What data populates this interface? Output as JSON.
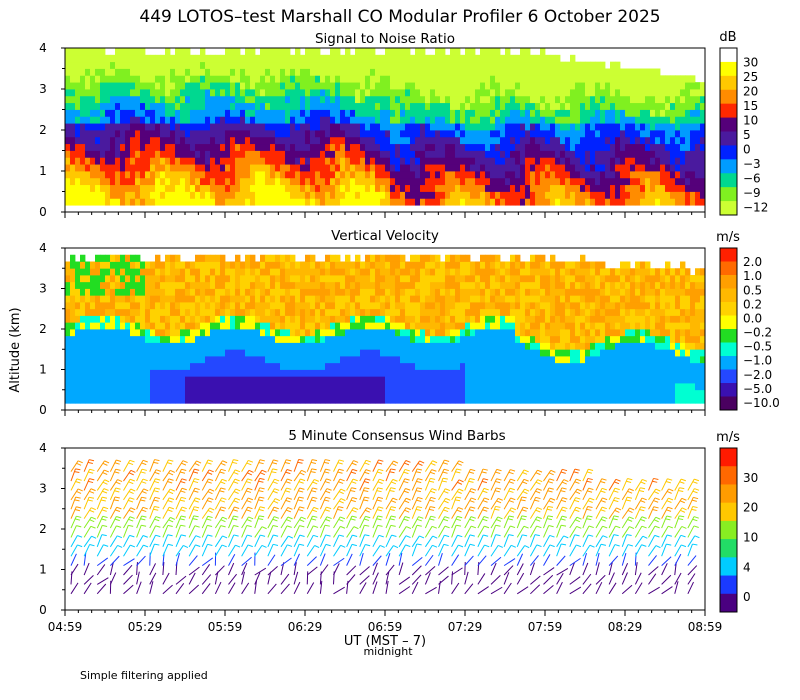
{
  "title": "449 LOTOS–test Marshall CO Modular Profiler  6 October 2025",
  "footer_note": "Simple filtering applied",
  "chart_data": [
    {
      "type": "heatmap",
      "panel_title": "Signal to Noise Ratio",
      "ylabel": "Altitude (km)",
      "ylim": [
        0,
        4
      ],
      "yticks": [
        "0",
        "1",
        "2",
        "3",
        "4"
      ],
      "xlim": [
        "04:59",
        "08:59"
      ],
      "colorbar_unit": "dB",
      "colorbar_labels": [
        "30",
        "25",
        "20",
        "15",
        "10",
        "5",
        "0",
        "−3",
        "−6",
        "−9",
        "−12"
      ],
      "colorbar_colors": [
        "#ffffff",
        "#ffff00",
        "#ffc800",
        "#ff8c00",
        "#ff2800",
        "#55007a",
        "#4a1a9e",
        "#0022ff",
        "#009cff",
        "#00d890",
        "#80f020",
        "#ccff33"
      ]
    },
    {
      "type": "heatmap",
      "panel_title": "Vertical Velocity",
      "ylabel": "Altitude (km)",
      "ylim": [
        0,
        4
      ],
      "yticks": [
        "0",
        "1",
        "2",
        "3",
        "4"
      ],
      "xlim": [
        "04:59",
        "08:59"
      ],
      "colorbar_unit": "m/s",
      "colorbar_labels": [
        "2.0",
        "1.0",
        "0.5",
        "0.2",
        "0.0",
        "−0.2",
        "−0.5",
        "−1.0",
        "−2.0",
        "−5.0",
        "−10.0"
      ],
      "colorbar_colors": [
        "#ff2000",
        "#ff6a00",
        "#ff9f00",
        "#ffb800",
        "#ffd200",
        "#ffff00",
        "#22dd22",
        "#00ffd2",
        "#00a8ff",
        "#2448ff",
        "#3a10b0",
        "#4a0060"
      ]
    },
    {
      "type": "scatter",
      "panel_title": "5 Minute Consensus Wind Barbs",
      "ylabel": "Altitude (km)",
      "ylim": [
        0,
        4
      ],
      "yticks": [
        "0",
        "1",
        "2",
        "3",
        "4"
      ],
      "xlabel": "UT  (MST – 7)",
      "xlabel_note": "midnight",
      "x_tick_labels": [
        "04:59",
        "05:29",
        "05:59",
        "06:29",
        "06:59",
        "07:29",
        "07:59",
        "08:29",
        "08:59"
      ],
      "colorbar_unit": "m/s",
      "colorbar_labels": [
        "30",
        "20",
        "10",
        "4",
        "0"
      ],
      "colorbar_colors": [
        "#ff1a00",
        "#ff6800",
        "#ff9c00",
        "#ffc800",
        "#88ee22",
        "#22dd66",
        "#00ccff",
        "#1a3aff",
        "#4a0080"
      ]
    }
  ]
}
